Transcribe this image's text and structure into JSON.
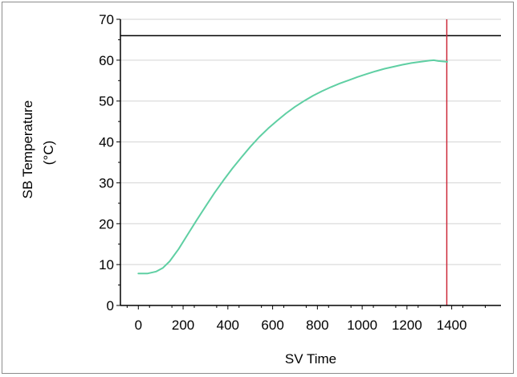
{
  "chart_data": {
    "type": "line",
    "title": "",
    "xlabel": "SV Time",
    "ylabel_line1": "SB Temperature",
    "ylabel_line2": "(°C)",
    "xlim": [
      -80,
      1620
    ],
    "ylim": [
      0,
      70
    ],
    "x_ticks": [
      0,
      200,
      400,
      600,
      800,
      1000,
      1200,
      1400
    ],
    "y_ticks": [
      0,
      10,
      20,
      30,
      40,
      50,
      60,
      70
    ],
    "grid": "horizontal",
    "legend": "none",
    "series": [
      {
        "color": "#5fcfa3",
        "x": [
          0,
          40,
          80,
          110,
          140,
          180,
          220,
          260,
          300,
          340,
          380,
          420,
          460,
          500,
          540,
          580,
          620,
          660,
          700,
          740,
          780,
          820,
          860,
          900,
          940,
          980,
          1020,
          1060,
          1100,
          1140,
          1180,
          1220,
          1260,
          1300,
          1320,
          1340,
          1380
        ],
        "y": [
          7.8,
          7.8,
          8.3,
          9.2,
          10.8,
          13.8,
          17.3,
          20.8,
          24.2,
          27.5,
          30.6,
          33.5,
          36.2,
          38.8,
          41.2,
          43.3,
          45.2,
          47.0,
          48.6,
          50.0,
          51.3,
          52.4,
          53.4,
          54.3,
          55.1,
          55.9,
          56.6,
          57.3,
          57.9,
          58.4,
          58.9,
          59.3,
          59.6,
          59.9,
          60.0,
          59.8,
          59.6
        ]
      }
    ],
    "reference_lines": [
      {
        "orientation": "horizontal",
        "value": 66,
        "color": "#000000"
      },
      {
        "orientation": "vertical",
        "value": 1378,
        "color": "#cc2a3a"
      }
    ]
  }
}
